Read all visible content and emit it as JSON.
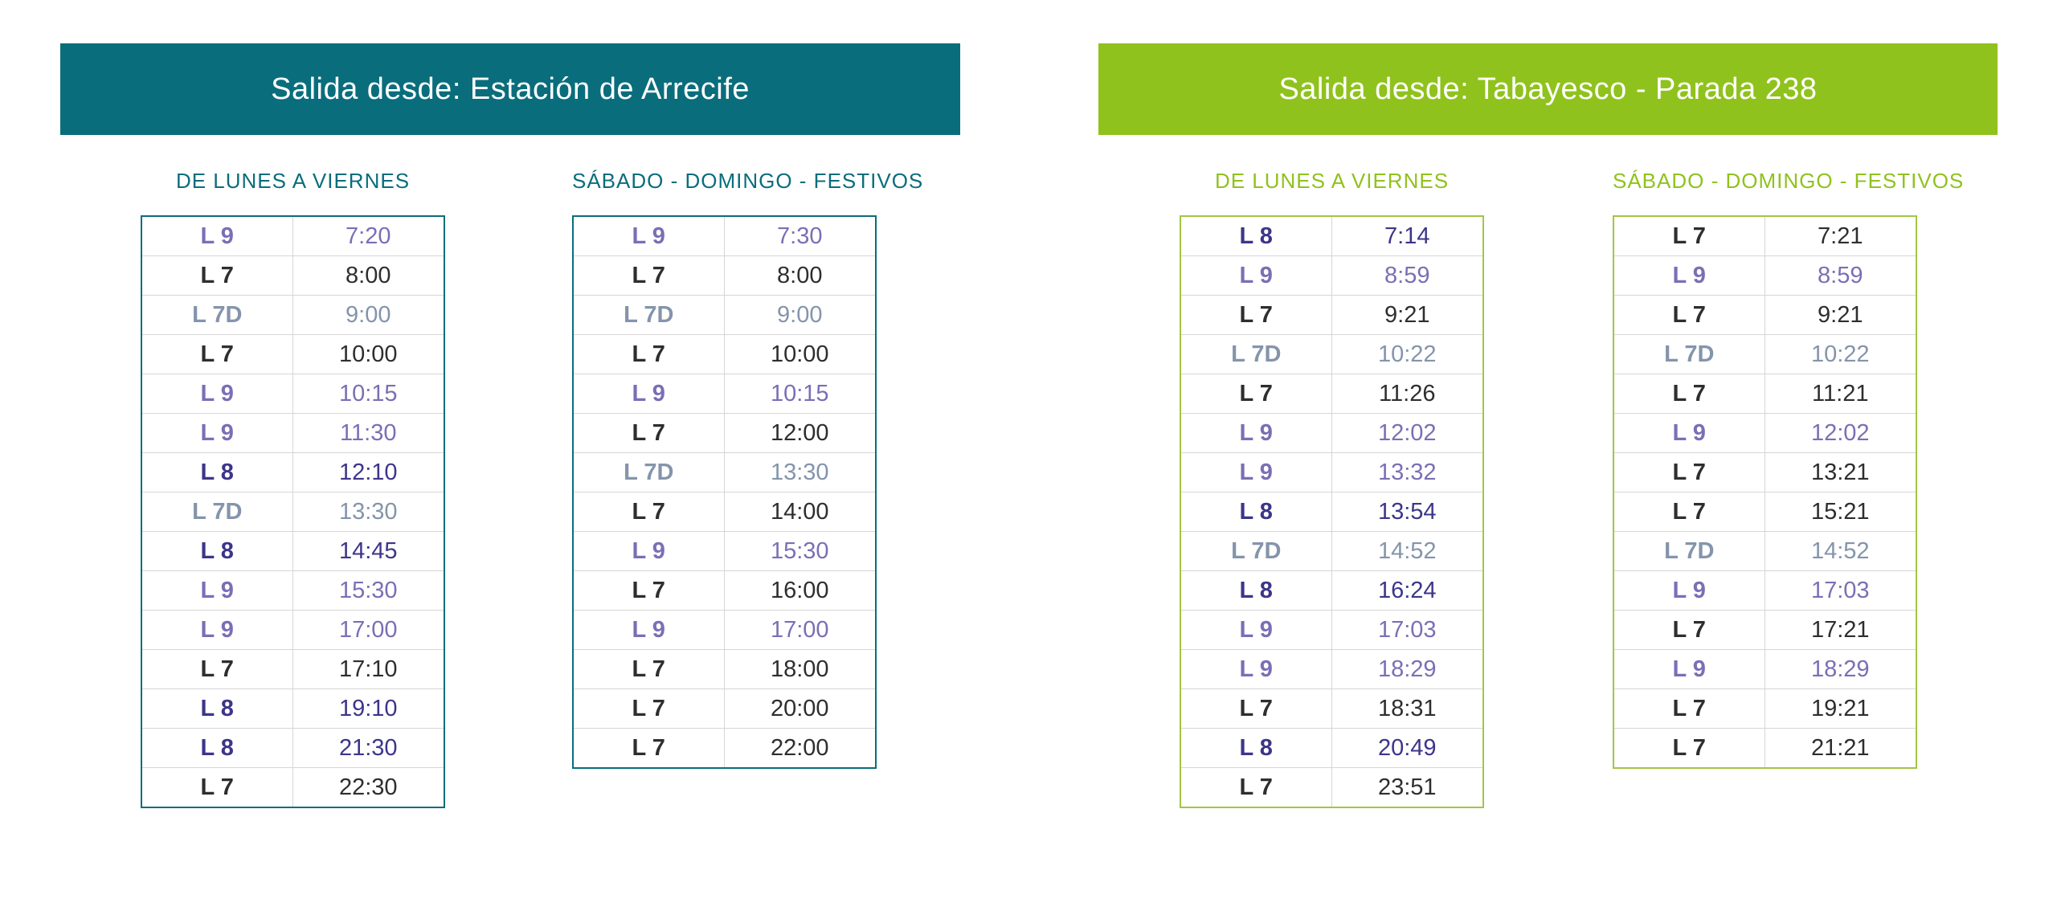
{
  "line_colors": {
    "L 7": "#2e2e2e",
    "L 9": "#7a6fb5",
    "L 7D": "#8494ab",
    "L 8": "#3c3589"
  },
  "sections": [
    {
      "header": "Salida desde: Estación de Arrecife",
      "accent": "#0a6d7c",
      "table_border": "#0a6d7c",
      "title_color": "#0a6d7c",
      "tables": [
        {
          "title": "DE LUNES A VIERNES",
          "rows": [
            {
              "line": "L 9",
              "time": "7:20"
            },
            {
              "line": "L 7",
              "time": "8:00"
            },
            {
              "line": "L 7D",
              "time": "9:00"
            },
            {
              "line": "L 7",
              "time": "10:00"
            },
            {
              "line": "L 9",
              "time": "10:15"
            },
            {
              "line": "L 9",
              "time": "11:30"
            },
            {
              "line": "L 8",
              "time": "12:10"
            },
            {
              "line": "L 7D",
              "time": "13:30"
            },
            {
              "line": "L 8",
              "time": "14:45"
            },
            {
              "line": "L 9",
              "time": "15:30"
            },
            {
              "line": "L 9",
              "time": "17:00"
            },
            {
              "line": "L 7",
              "time": "17:10"
            },
            {
              "line": "L 8",
              "time": "19:10"
            },
            {
              "line": "L 8",
              "time": "21:30"
            },
            {
              "line": "L 7",
              "time": "22:30"
            }
          ]
        },
        {
          "title": "SÁBADO - DOMINGO - FESTIVOS",
          "rows": [
            {
              "line": "L 9",
              "time": "7:30"
            },
            {
              "line": "L 7",
              "time": "8:00"
            },
            {
              "line": "L 7D",
              "time": "9:00"
            },
            {
              "line": "L 7",
              "time": "10:00"
            },
            {
              "line": "L 9",
              "time": "10:15"
            },
            {
              "line": "L 7",
              "time": "12:00"
            },
            {
              "line": "L 7D",
              "time": "13:30"
            },
            {
              "line": "L 7",
              "time": "14:00"
            },
            {
              "line": "L 9",
              "time": "15:30"
            },
            {
              "line": "L 7",
              "time": "16:00"
            },
            {
              "line": "L 9",
              "time": "17:00"
            },
            {
              "line": "L 7",
              "time": "18:00"
            },
            {
              "line": "L 7",
              "time": "20:00"
            },
            {
              "line": "L 7",
              "time": "22:00"
            }
          ]
        }
      ]
    },
    {
      "header": "Salida desde: Tabayesco - Parada 238",
      "accent": "#90c21d",
      "table_border": "#a3c545",
      "title_color": "#90c21d",
      "tables": [
        {
          "title": "DE LUNES A VIERNES",
          "rows": [
            {
              "line": "L 8",
              "time": "7:14"
            },
            {
              "line": "L 9",
              "time": "8:59"
            },
            {
              "line": "L 7",
              "time": "9:21"
            },
            {
              "line": "L 7D",
              "time": "10:22"
            },
            {
              "line": "L 7",
              "time": "11:26"
            },
            {
              "line": "L 9",
              "time": "12:02"
            },
            {
              "line": "L 9",
              "time": "13:32"
            },
            {
              "line": "L 8",
              "time": "13:54"
            },
            {
              "line": "L 7D",
              "time": "14:52"
            },
            {
              "line": "L 8",
              "time": "16:24"
            },
            {
              "line": "L 9",
              "time": "17:03"
            },
            {
              "line": "L 9",
              "time": "18:29"
            },
            {
              "line": "L 7",
              "time": "18:31"
            },
            {
              "line": "L 8",
              "time": "20:49"
            },
            {
              "line": "L 7",
              "time": "23:51"
            }
          ]
        },
        {
          "title": "SÁBADO - DOMINGO - FESTIVOS",
          "rows": [
            {
              "line": "L 7",
              "time": "7:21"
            },
            {
              "line": "L 9",
              "time": "8:59"
            },
            {
              "line": "L 7",
              "time": "9:21"
            },
            {
              "line": "L 7D",
              "time": "10:22"
            },
            {
              "line": "L 7",
              "time": "11:21"
            },
            {
              "line": "L 9",
              "time": "12:02"
            },
            {
              "line": "L 7",
              "time": "13:21"
            },
            {
              "line": "L 7",
              "time": "15:21"
            },
            {
              "line": "L 7D",
              "time": "14:52"
            },
            {
              "line": "L 9",
              "time": "17:03"
            },
            {
              "line": "L 7",
              "time": "17:21"
            },
            {
              "line": "L 9",
              "time": "18:29"
            },
            {
              "line": "L 7",
              "time": "19:21"
            },
            {
              "line": "L 7",
              "time": "21:21"
            }
          ]
        }
      ]
    }
  ]
}
